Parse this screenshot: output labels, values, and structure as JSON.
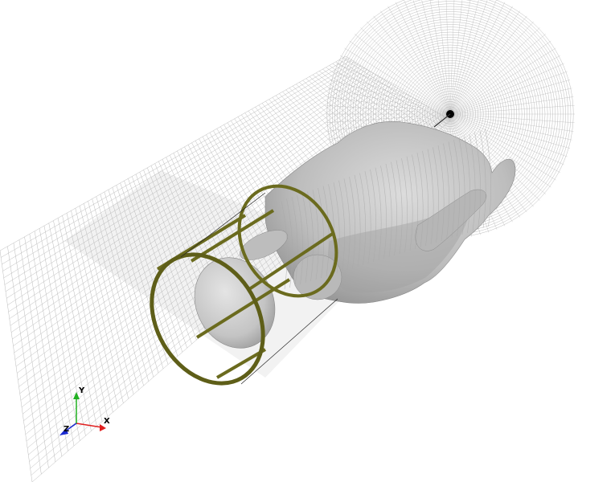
{
  "scene": {
    "description_free": true,
    "background_color": "#ffffff",
    "grid_color": "#b4b4b4",
    "body_color": "#c8c8c8",
    "body_shade_color": "#9a9a9a",
    "coil_color": "#6b6b1e",
    "coil_dark_color": "#434310"
  },
  "orientation_triad": {
    "x_label": "X",
    "y_label": "Y",
    "z_label": "Z",
    "x_color": "#e02020",
    "y_color": "#20b020",
    "z_color": "#1a2ad0"
  }
}
